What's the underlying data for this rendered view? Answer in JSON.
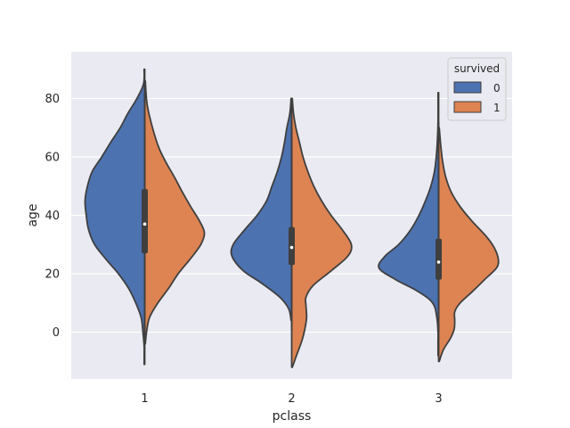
{
  "chart_data": {
    "type": "violin",
    "split": true,
    "xlabel": "pclass",
    "ylabel": "age",
    "categories": [
      "1",
      "2",
      "3"
    ],
    "ylim": [
      -16,
      96
    ],
    "yticks": [
      0,
      20,
      40,
      60,
      80
    ],
    "grid": true,
    "legend": {
      "title": "survived",
      "placement": "top-right",
      "entries": [
        {
          "label": "0",
          "color": "#4c72b0"
        },
        {
          "label": "1",
          "color": "#dd8452"
        }
      ]
    },
    "series": [
      {
        "name": "0",
        "color": "#4c72b0",
        "side": "left",
        "violins": [
          {
            "category": "1",
            "ymin": -11,
            "ymax": 90,
            "profile": [
              [
                -11,
                0.01
              ],
              [
                -5,
                0.01
              ],
              [
                0,
                0.03
              ],
              [
                5,
                0.06
              ],
              [
                10,
                0.15
              ],
              [
                15,
                0.27
              ],
              [
                20,
                0.44
              ],
              [
                25,
                0.65
              ],
              [
                30,
                0.84
              ],
              [
                35,
                0.94
              ],
              [
                40,
                0.98
              ],
              [
                45,
                1.0
              ],
              [
                50,
                0.96
              ],
              [
                55,
                0.88
              ],
              [
                60,
                0.72
              ],
              [
                65,
                0.57
              ],
              [
                70,
                0.41
              ],
              [
                75,
                0.28
              ],
              [
                80,
                0.13
              ],
              [
                85,
                0.02
              ],
              [
                90,
                0.01
              ]
            ]
          },
          {
            "category": "2",
            "ymin": 4,
            "ymax": 80,
            "profile": [
              [
                4,
                0.01
              ],
              [
                8,
                0.05
              ],
              [
                12,
                0.2
              ],
              [
                17,
                0.52
              ],
              [
                21,
                0.81
              ],
              [
                26,
                1.0
              ],
              [
                30,
                0.98
              ],
              [
                35,
                0.79
              ],
              [
                40,
                0.58
              ],
              [
                45,
                0.42
              ],
              [
                50,
                0.33
              ],
              [
                55,
                0.24
              ],
              [
                60,
                0.17
              ],
              [
                65,
                0.12
              ],
              [
                70,
                0.08
              ],
              [
                75,
                0.03
              ],
              [
                80,
                0.01
              ]
            ]
          },
          {
            "category": "3",
            "ymin": -8,
            "ymax": 82,
            "profile": [
              [
                -8,
                0.01
              ],
              [
                -3,
                0.01
              ],
              [
                0,
                0.01
              ],
              [
                5,
                0.03
              ],
              [
                10,
                0.1
              ],
              [
                14,
                0.35
              ],
              [
                18,
                0.72
              ],
              [
                22,
                1.0
              ],
              [
                26,
                0.9
              ],
              [
                30,
                0.67
              ],
              [
                35,
                0.47
              ],
              [
                40,
                0.33
              ],
              [
                45,
                0.22
              ],
              [
                50,
                0.13
              ],
              [
                55,
                0.07
              ],
              [
                60,
                0.04
              ],
              [
                66,
                0.02
              ],
              [
                72,
                0.01
              ],
              [
                82,
                0.01
              ]
            ]
          }
        ]
      },
      {
        "name": "1",
        "color": "#dd8452",
        "side": "right",
        "violins": [
          {
            "category": "1",
            "ymin": -4,
            "ymax": 86,
            "profile": [
              [
                -4,
                0.01
              ],
              [
                0,
                0.03
              ],
              [
                5,
                0.08
              ],
              [
                10,
                0.22
              ],
              [
                15,
                0.4
              ],
              [
                20,
                0.56
              ],
              [
                25,
                0.76
              ],
              [
                30,
                0.94
              ],
              [
                34,
                1.0
              ],
              [
                38,
                0.92
              ],
              [
                43,
                0.77
              ],
              [
                48,
                0.63
              ],
              [
                53,
                0.5
              ],
              [
                58,
                0.36
              ],
              [
                63,
                0.24
              ],
              [
                70,
                0.13
              ],
              [
                78,
                0.04
              ],
              [
                86,
                0.01
              ]
            ]
          },
          {
            "category": "2",
            "ymin": -12,
            "ymax": 80,
            "profile": [
              [
                -12,
                0.01
              ],
              [
                -8,
                0.08
              ],
              [
                -3,
                0.17
              ],
              [
                1,
                0.22
              ],
              [
                5,
                0.25
              ],
              [
                9,
                0.24
              ],
              [
                12,
                0.24
              ],
              [
                16,
                0.36
              ],
              [
                21,
                0.66
              ],
              [
                26,
                0.94
              ],
              [
                30,
                1.0
              ],
              [
                35,
                0.85
              ],
              [
                40,
                0.66
              ],
              [
                45,
                0.5
              ],
              [
                50,
                0.37
              ],
              [
                55,
                0.27
              ],
              [
                60,
                0.19
              ],
              [
                65,
                0.13
              ],
              [
                70,
                0.07
              ],
              [
                75,
                0.03
              ],
              [
                80,
                0.01
              ]
            ]
          },
          {
            "category": "3",
            "ymin": -10,
            "ymax": 70,
            "profile": [
              [
                -10,
                0.01
              ],
              [
                -6,
                0.08
              ],
              [
                -2,
                0.2
              ],
              [
                1,
                0.26
              ],
              [
                4,
                0.27
              ],
              [
                7,
                0.27
              ],
              [
                10,
                0.36
              ],
              [
                14,
                0.57
              ],
              [
                18,
                0.77
              ],
              [
                22,
                0.97
              ],
              [
                25,
                1.0
              ],
              [
                29,
                0.93
              ],
              [
                33,
                0.79
              ],
              [
                38,
                0.56
              ],
              [
                43,
                0.36
              ],
              [
                48,
                0.21
              ],
              [
                53,
                0.12
              ],
              [
                58,
                0.07
              ],
              [
                63,
                0.04
              ],
              [
                70,
                0.01
              ]
            ]
          }
        ]
      }
    ],
    "inner_box": [
      {
        "category": "1",
        "q1": 27,
        "median": 37,
        "q3": 49,
        "whisker_low": 0,
        "whisker_high": 84
      },
      {
        "category": "2",
        "q1": 23,
        "median": 29,
        "q3": 36,
        "whisker_low": 1,
        "whisker_high": 70
      },
      {
        "category": "3",
        "q1": 18,
        "median": 24,
        "q3": 32,
        "whisker_low": 0,
        "whisker_high": 72
      }
    ]
  }
}
